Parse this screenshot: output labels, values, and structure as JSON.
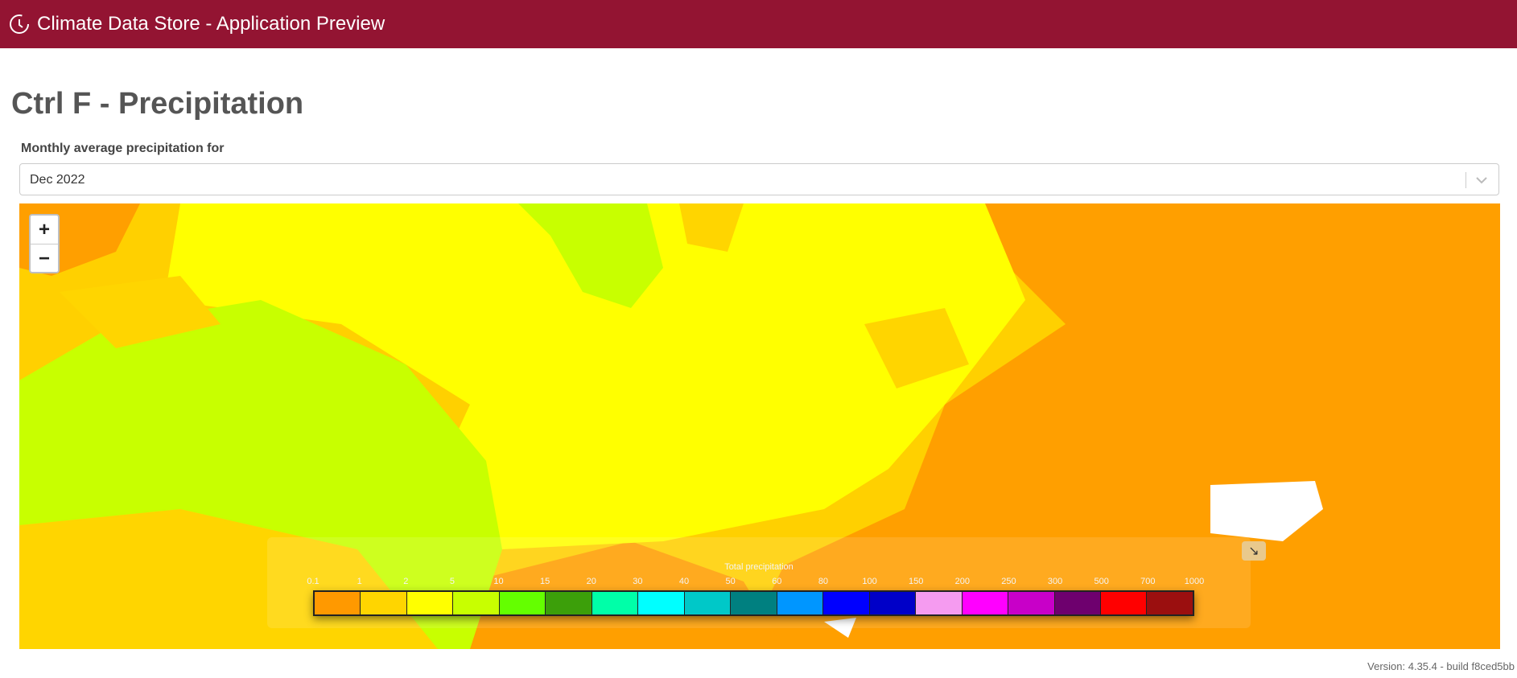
{
  "app": {
    "title": "Climate Data Store - Application Preview"
  },
  "page": {
    "title": "Ctrl F - Precipitation"
  },
  "selector": {
    "label": "Monthly average precipitation for",
    "value": "Dec 2022"
  },
  "map": {
    "zoom_in": "+",
    "zoom_out": "−",
    "expand_icon": "↘",
    "legend": {
      "title": "Total precipitation",
      "ticks": [
        "0.1",
        "1",
        "2",
        "5",
        "10",
        "15",
        "20",
        "30",
        "40",
        "50",
        "60",
        "80",
        "100",
        "150",
        "200",
        "250",
        "300",
        "500",
        "700",
        "1000"
      ],
      "colors": [
        "#ff9900",
        "#ffd500",
        "#ffff00",
        "#c8ff00",
        "#64ff00",
        "#3c9f0a",
        "#00ffa8",
        "#00ffff",
        "#00c8c8",
        "#008080",
        "#0096ff",
        "#0000ff",
        "#0000c8",
        "#f59bf0",
        "#ff00ff",
        "#c800c8",
        "#6e006e",
        "#ff0000",
        "#9b0f0f"
      ]
    },
    "fill_colors": {
      "ocean_orange": "#ff9f00",
      "land_yellow": "#ffff00",
      "green": "#c8ff00",
      "gold": "#ffd500"
    }
  },
  "footer": {
    "version": "Version: 4.35.4 - build f8ced5bb"
  }
}
